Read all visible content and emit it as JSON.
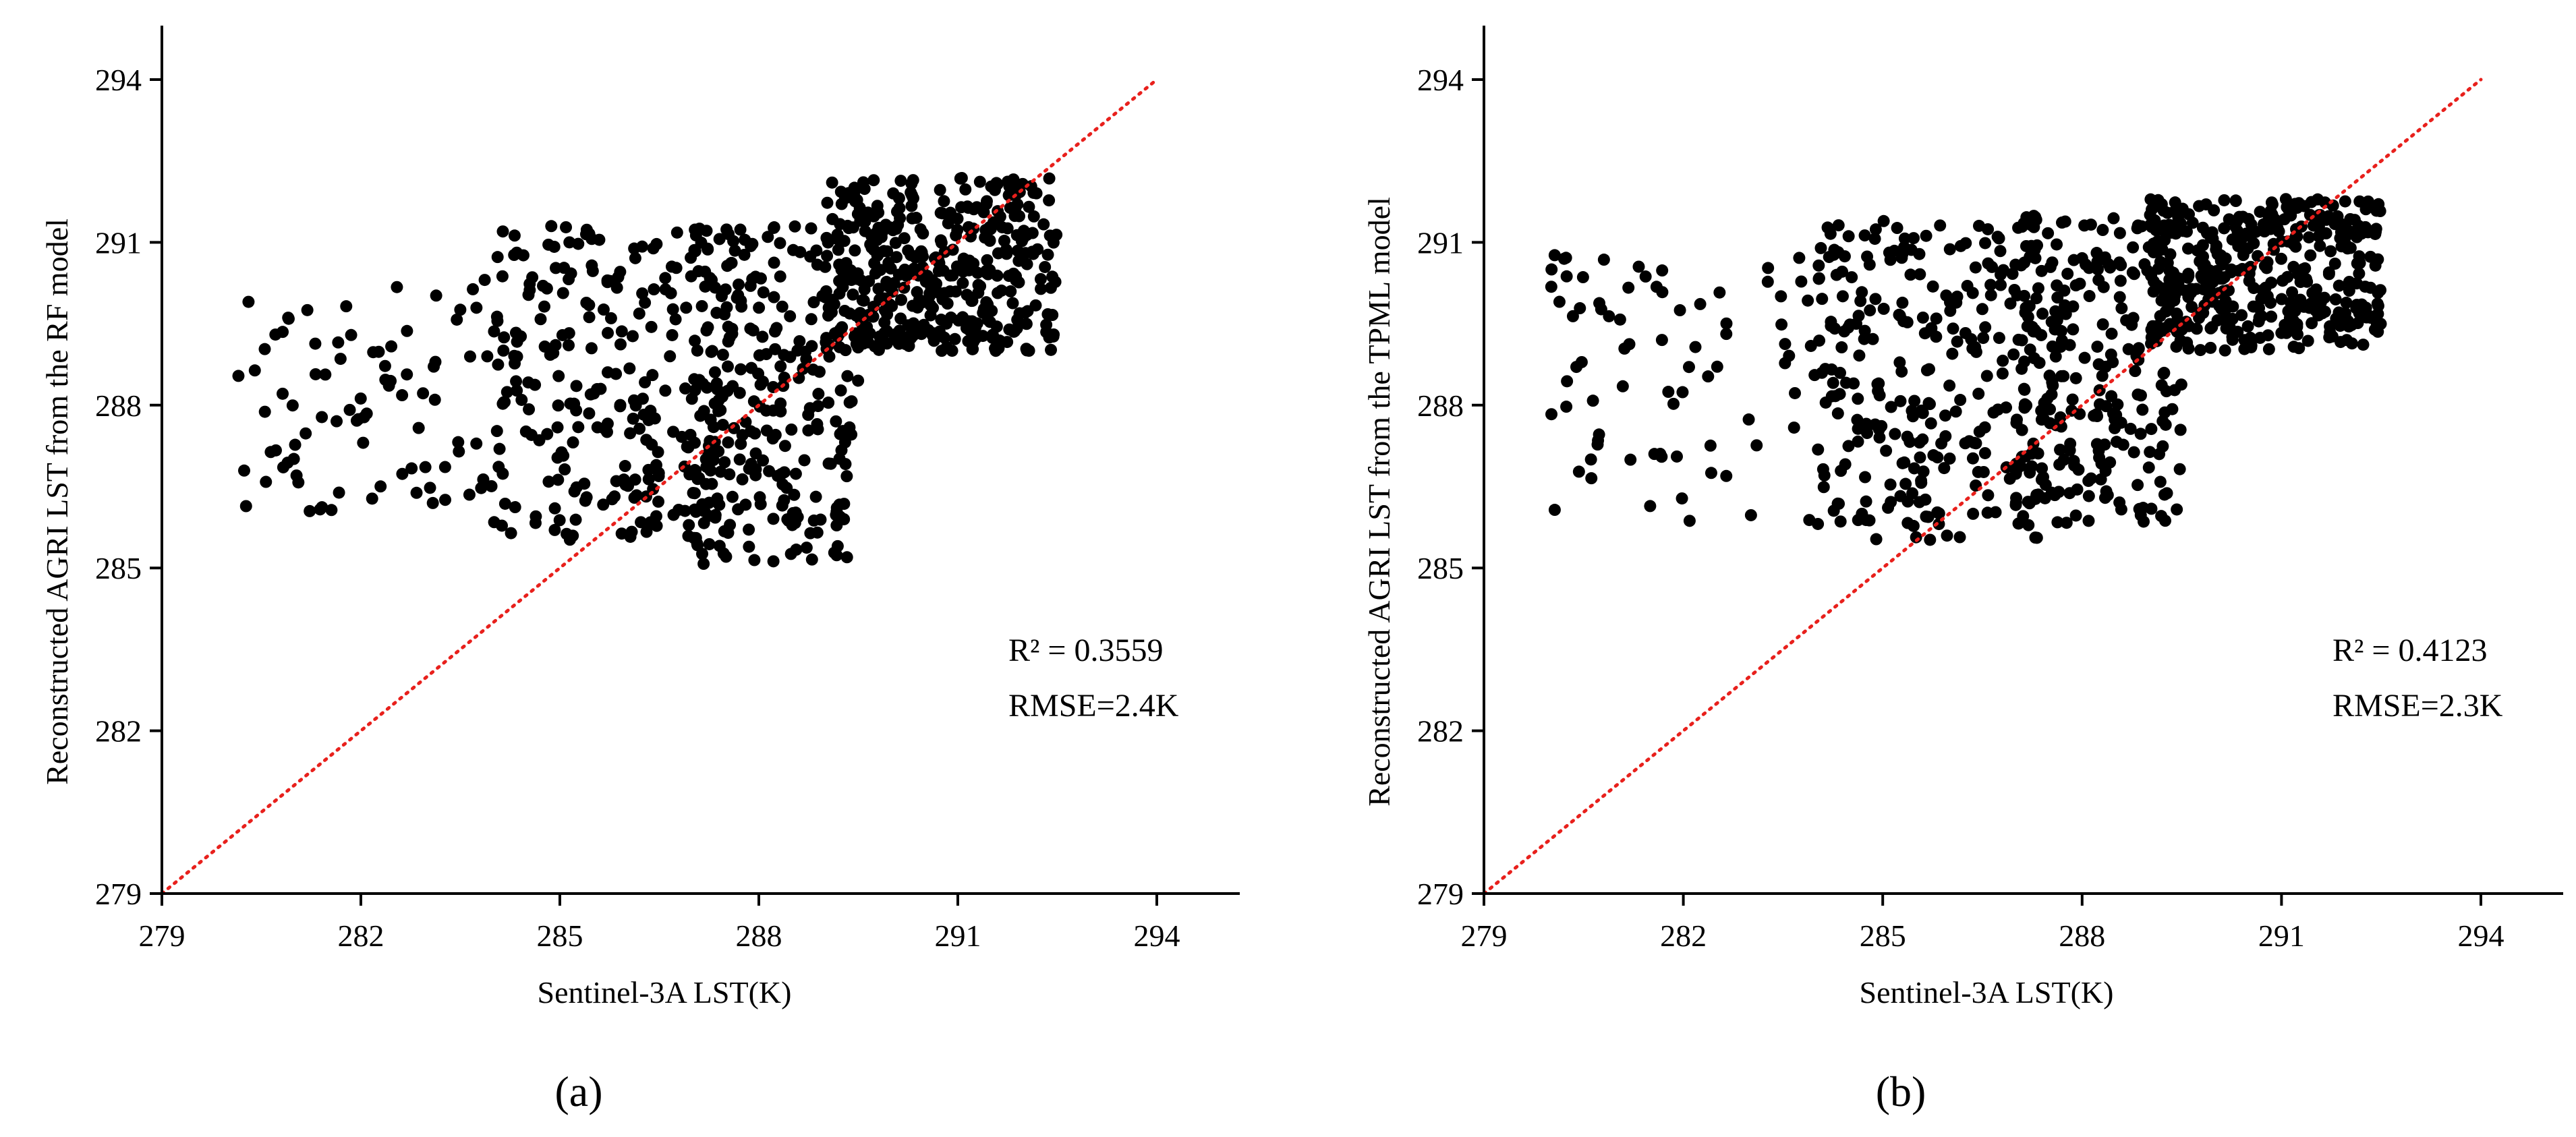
{
  "colors": {
    "points": "#000000",
    "reference_line": "#e8201c",
    "axes": "#000000"
  },
  "chart_data": [
    {
      "type": "scatter",
      "panel_label": "(a)",
      "xlabel": "Sentinel-3A LST(K)",
      "ylabel": "Reconstructed AGRI LST from the RF model",
      "xlim": [
        279,
        294
      ],
      "ylim": [
        279,
        294
      ],
      "xticks": [
        279,
        282,
        285,
        288,
        291,
        294
      ],
      "yticks": [
        279,
        282,
        285,
        288,
        291,
        294
      ],
      "reference_line": {
        "x": [
          279,
          294
        ],
        "y": [
          279,
          294
        ],
        "style": "dotted"
      },
      "annotations": {
        "r2": "R² = 0.3559",
        "rmse": "RMSE=2.4K"
      },
      "r2": 0.3559,
      "rmse_K": 2.4,
      "point_cloud": {
        "n_points": 1000,
        "regions": [
          {
            "x_range": [
              280.0,
              284.5
            ],
            "y_range": [
              286.0,
              290.5
            ],
            "n": 90
          },
          {
            "x_range": [
              284.0,
              287.5
            ],
            "y_range": [
              285.5,
              291.3
            ],
            "n": 250
          },
          {
            "x_range": [
              287.0,
              289.5
            ],
            "y_range": [
              285.0,
              291.3
            ],
            "n": 250
          },
          {
            "x_range": [
              289.0,
              292.5
            ],
            "y_range": [
              289.0,
              292.2
            ],
            "n": 410
          }
        ]
      }
    },
    {
      "type": "scatter",
      "panel_label": "(b)",
      "xlabel": "Sentinel-3A LST(K)",
      "ylabel": "Reconstructed AGRI LST from the TPML model",
      "xlim": [
        279,
        294
      ],
      "ylim": [
        279,
        294
      ],
      "xticks": [
        279,
        282,
        285,
        288,
        291,
        294
      ],
      "yticks": [
        279,
        282,
        285,
        288,
        291,
        294
      ],
      "reference_line": {
        "x": [
          279,
          294
        ],
        "y": [
          279,
          294
        ],
        "style": "dotted"
      },
      "annotations": {
        "r2": "R² = 0.4123",
        "rmse": "RMSE=2.3K"
      },
      "r2": 0.4123,
      "rmse_K": 2.3,
      "point_cloud": {
        "n_points": 1000,
        "regions": [
          {
            "x_range": [
              280.0,
              284.5
            ],
            "y_range": [
              285.8,
              290.8
            ],
            "n": 90
          },
          {
            "x_range": [
              284.0,
              287.5
            ],
            "y_range": [
              285.5,
              291.4
            ],
            "n": 260
          },
          {
            "x_range": [
              287.0,
              289.5
            ],
            "y_range": [
              285.8,
              291.5
            ],
            "n": 250
          },
          {
            "x_range": [
              289.0,
              292.5
            ],
            "y_range": [
              289.0,
              291.8
            ],
            "n": 400
          }
        ]
      }
    }
  ]
}
